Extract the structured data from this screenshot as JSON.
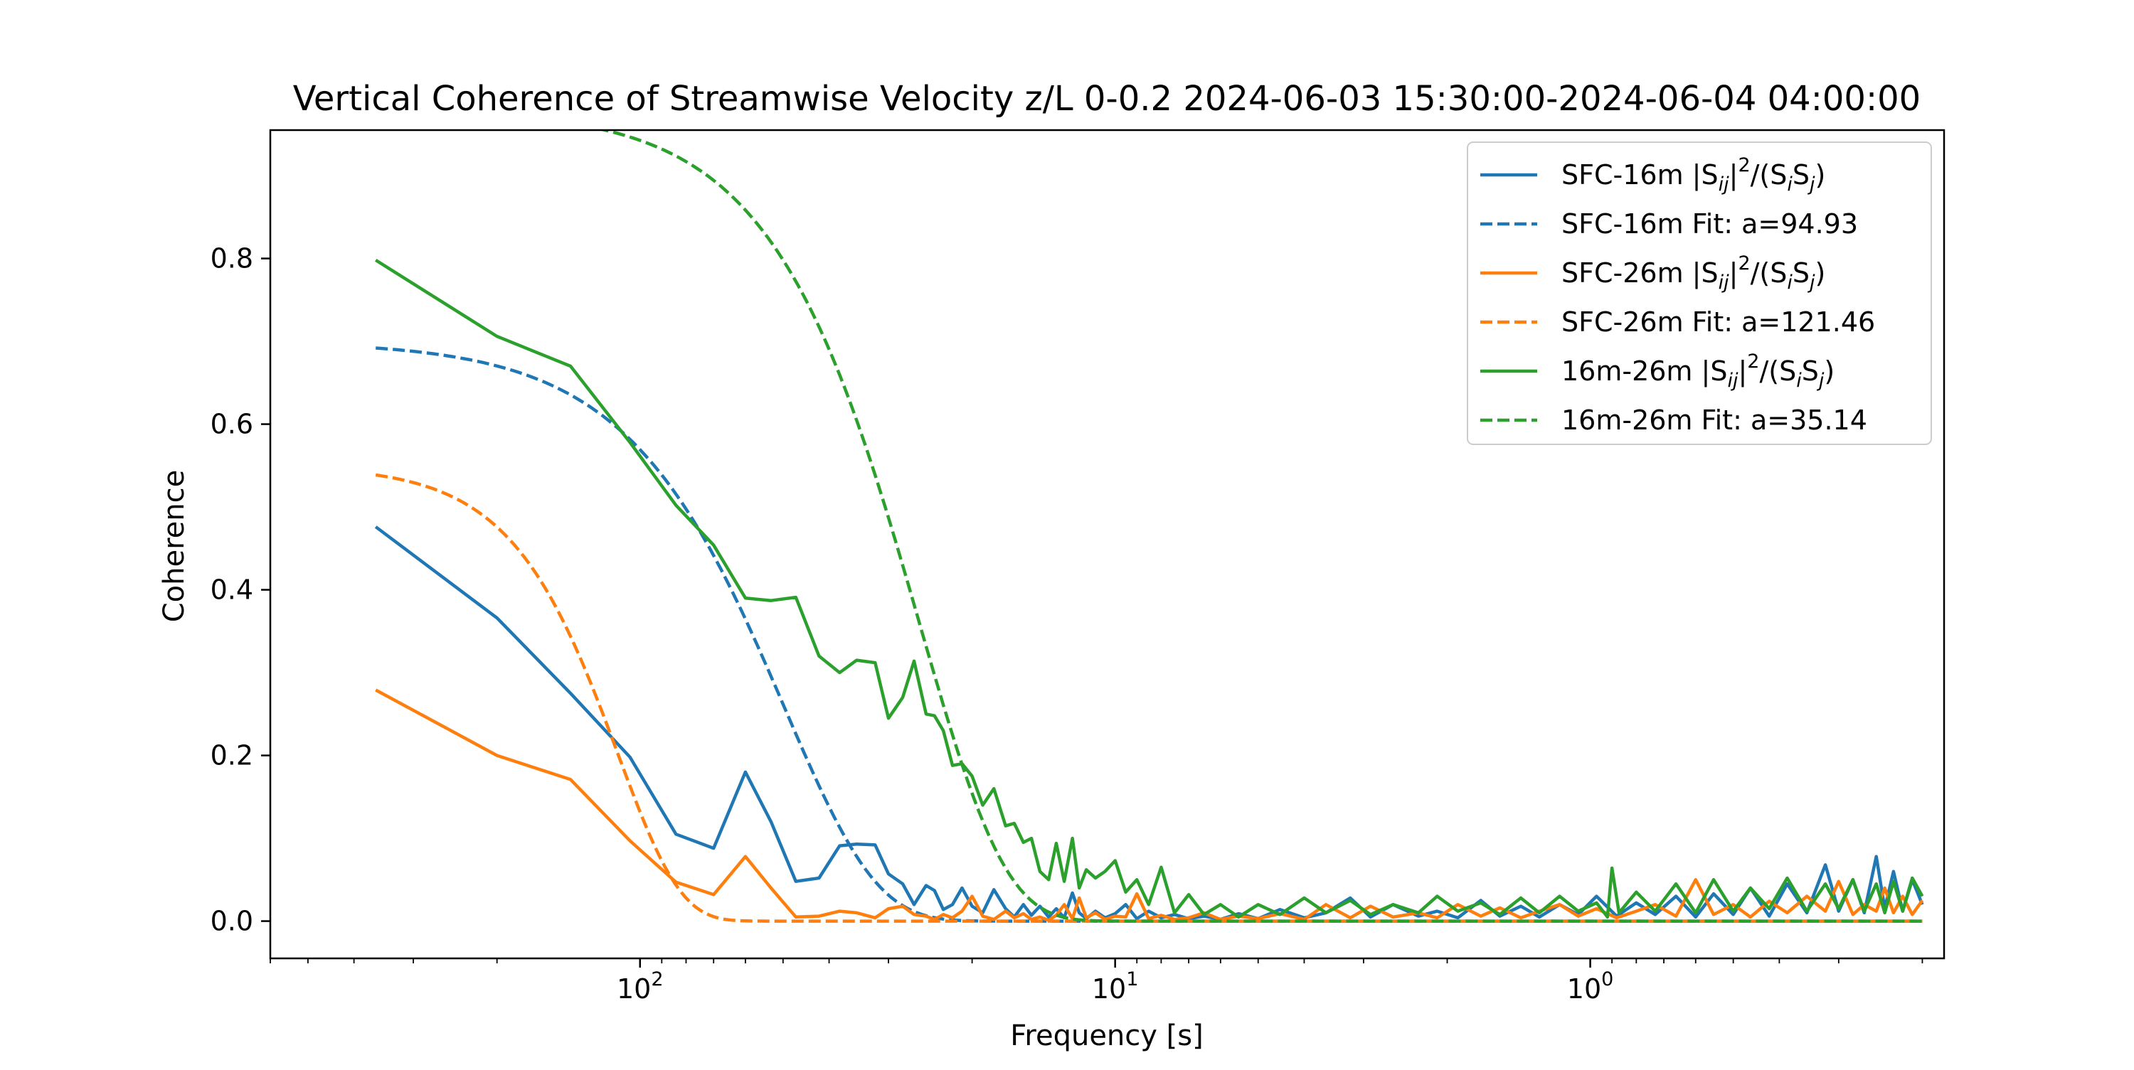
{
  "chart_data": {
    "type": "line",
    "title": "Vertical Coherence of Streamwise Velocity z/L 0-0.2 2024-06-03 15:30:00-2024-06-04 04:00:00",
    "xlabel": "Frequency [s]",
    "ylabel": "Coherence",
    "x_scale": "log",
    "x_axis_inverted": true,
    "xlim": [
      600,
      0.18
    ],
    "ylim": [
      -0.045,
      0.955
    ],
    "yticks": [
      0.0,
      0.2,
      0.4,
      0.6,
      0.8
    ],
    "ytick_labels": [
      "0.0",
      "0.2",
      "0.4",
      "0.6",
      "0.8"
    ],
    "xticks": [
      100,
      10,
      1
    ],
    "xtick_labels": [
      "10^2",
      "10^1",
      "10^0"
    ],
    "grid": false,
    "legend_position": "top-right",
    "series": [
      {
        "name": "SFC-16m |Sij|²/(SiSj)",
        "name_parts": {
          "pre": "SFC-16m |S",
          "sub1": "ij",
          "mid": "|",
          "sup": "2",
          "mid2": "/(S",
          "sub2": "i",
          "mid3": "S",
          "sub3": "j",
          "post": ")"
        },
        "color": "#1f77b4",
        "style": "solid",
        "points": [
          [
            360,
            0.476
          ],
          [
            200,
            0.366
          ],
          [
            140,
            0.275
          ],
          [
            105,
            0.198
          ],
          [
            84,
            0.105
          ],
          [
            70,
            0.088
          ],
          [
            60,
            0.18
          ],
          [
            53,
            0.12
          ],
          [
            47,
            0.048
          ],
          [
            42,
            0.052
          ],
          [
            38,
            0.091
          ],
          [
            35,
            0.093
          ],
          [
            32,
            0.092
          ],
          [
            30,
            0.057
          ],
          [
            28,
            0.045
          ],
          [
            26.5,
            0.02
          ],
          [
            25,
            0.043
          ],
          [
            24,
            0.037
          ],
          [
            23,
            0.014
          ],
          [
            22,
            0.02
          ],
          [
            21,
            0.04
          ],
          [
            20,
            0.018
          ],
          [
            19,
            0.01
          ],
          [
            18,
            0.038
          ],
          [
            17,
            0.015
          ],
          [
            16.3,
            0.005
          ],
          [
            15.6,
            0.02
          ],
          [
            15,
            0.007
          ],
          [
            14.4,
            0.018
          ],
          [
            13.8,
            0.005
          ],
          [
            13.3,
            0.015
          ],
          [
            12.8,
            0.004
          ],
          [
            12.3,
            0.034
          ],
          [
            11.9,
            0.01
          ],
          [
            11.5,
            0.003
          ],
          [
            11,
            0.012
          ],
          [
            10.5,
            0.004
          ],
          [
            10,
            0.009
          ],
          [
            9.5,
            0.02
          ],
          [
            9,
            0.003
          ],
          [
            8.5,
            0.012
          ],
          [
            8,
            0.004
          ],
          [
            7.5,
            0.008
          ],
          [
            7,
            0.003
          ],
          [
            6.5,
            0.006
          ],
          [
            6,
            0.002
          ],
          [
            5.5,
            0.009
          ],
          [
            5,
            0.003
          ],
          [
            4.5,
            0.014
          ],
          [
            4,
            0.004
          ],
          [
            3.6,
            0.01
          ],
          [
            3.2,
            0.028
          ],
          [
            2.9,
            0.005
          ],
          [
            2.6,
            0.02
          ],
          [
            2.3,
            0.006
          ],
          [
            2.1,
            0.012
          ],
          [
            1.9,
            0.004
          ],
          [
            1.7,
            0.025
          ],
          [
            1.55,
            0.006
          ],
          [
            1.4,
            0.018
          ],
          [
            1.28,
            0.005
          ],
          [
            1.16,
            0.02
          ],
          [
            1.06,
            0.008
          ],
          [
            0.97,
            0.03
          ],
          [
            0.88,
            0.006
          ],
          [
            0.8,
            0.022
          ],
          [
            0.73,
            0.008
          ],
          [
            0.66,
            0.03
          ],
          [
            0.6,
            0.005
          ],
          [
            0.55,
            0.033
          ],
          [
            0.5,
            0.008
          ],
          [
            0.46,
            0.04
          ],
          [
            0.42,
            0.006
          ],
          [
            0.385,
            0.045
          ],
          [
            0.35,
            0.01
          ],
          [
            0.32,
            0.068
          ],
          [
            0.3,
            0.012
          ],
          [
            0.28,
            0.05
          ],
          [
            0.265,
            0.01
          ],
          [
            0.25,
            0.078
          ],
          [
            0.24,
            0.015
          ],
          [
            0.23,
            0.06
          ],
          [
            0.22,
            0.012
          ],
          [
            0.21,
            0.05
          ],
          [
            0.2,
            0.02
          ]
        ]
      },
      {
        "name": "SFC-16m Fit: a=94.93",
        "color": "#1f77b4",
        "style": "dashed",
        "fit": {
          "a": 94.93,
          "c0": 0.7,
          "p": 2.25
        }
      },
      {
        "name": "SFC-26m |Sij|²/(SiSj)",
        "name_parts": {
          "pre": "SFC-26m |S",
          "sub1": "ij",
          "mid": "|",
          "sup": "2",
          "mid2": "/(S",
          "sub2": "i",
          "mid3": "S",
          "sub3": "j",
          "post": ")"
        },
        "color": "#ff7f0e",
        "style": "solid",
        "points": [
          [
            360,
            0.279
          ],
          [
            200,
            0.2
          ],
          [
            140,
            0.171
          ],
          [
            105,
            0.097
          ],
          [
            84,
            0.047
          ],
          [
            70,
            0.032
          ],
          [
            60,
            0.078
          ],
          [
            53,
            0.04
          ],
          [
            47,
            0.005
          ],
          [
            42,
            0.006
          ],
          [
            38,
            0.012
          ],
          [
            35,
            0.01
          ],
          [
            32,
            0.004
          ],
          [
            30,
            0.015
          ],
          [
            28,
            0.018
          ],
          [
            26.5,
            0.008
          ],
          [
            25,
            0.006
          ],
          [
            24,
            0.002
          ],
          [
            23,
            0.008
          ],
          [
            22,
            0.004
          ],
          [
            21,
            0.012
          ],
          [
            20,
            0.03
          ],
          [
            19,
            0.006
          ],
          [
            18,
            0.002
          ],
          [
            17,
            0.012
          ],
          [
            16.3,
            0.004
          ],
          [
            15.6,
            0.009
          ],
          [
            15,
            0.002
          ],
          [
            14.4,
            0.005
          ],
          [
            13.8,
            0.001
          ],
          [
            13.3,
            0.007
          ],
          [
            12.8,
            0.02
          ],
          [
            12.3,
            0.003
          ],
          [
            11.9,
            0.028
          ],
          [
            11.5,
            0.004
          ],
          [
            11,
            0.01
          ],
          [
            10.5,
            0.002
          ],
          [
            10,
            0.006
          ],
          [
            9.5,
            0.005
          ],
          [
            9,
            0.033
          ],
          [
            8.5,
            0.003
          ],
          [
            8,
            0.007
          ],
          [
            7.5,
            0.002
          ],
          [
            7,
            0.004
          ],
          [
            6.5,
            0.01
          ],
          [
            6,
            0.002
          ],
          [
            5.5,
            0.006
          ],
          [
            5,
            0.003
          ],
          [
            4.5,
            0.009
          ],
          [
            4,
            0.002
          ],
          [
            3.6,
            0.02
          ],
          [
            3.2,
            0.004
          ],
          [
            2.9,
            0.018
          ],
          [
            2.6,
            0.005
          ],
          [
            2.3,
            0.01
          ],
          [
            2.1,
            0.004
          ],
          [
            1.9,
            0.02
          ],
          [
            1.7,
            0.006
          ],
          [
            1.55,
            0.016
          ],
          [
            1.4,
            0.004
          ],
          [
            1.28,
            0.012
          ],
          [
            1.16,
            0.02
          ],
          [
            1.06,
            0.006
          ],
          [
            0.97,
            0.015
          ],
          [
            0.88,
            0.004
          ],
          [
            0.8,
            0.012
          ],
          [
            0.73,
            0.02
          ],
          [
            0.66,
            0.006
          ],
          [
            0.6,
            0.05
          ],
          [
            0.55,
            0.008
          ],
          [
            0.5,
            0.02
          ],
          [
            0.46,
            0.005
          ],
          [
            0.42,
            0.024
          ],
          [
            0.385,
            0.01
          ],
          [
            0.35,
            0.03
          ],
          [
            0.32,
            0.012
          ],
          [
            0.3,
            0.048
          ],
          [
            0.28,
            0.008
          ],
          [
            0.265,
            0.02
          ],
          [
            0.25,
            0.012
          ],
          [
            0.24,
            0.04
          ],
          [
            0.23,
            0.01
          ],
          [
            0.22,
            0.03
          ],
          [
            0.21,
            0.008
          ],
          [
            0.2,
            0.025
          ]
        ]
      },
      {
        "name": "SFC-26m Fit: a=121.46",
        "color": "#ff7f0e",
        "style": "dashed",
        "fit": {
          "a": 121.46,
          "c0": 0.55,
          "p": 3.3
        }
      },
      {
        "name": "16m-26m |Sij|²/(SiSj)",
        "name_parts": {
          "pre": "16m-26m |S",
          "sub1": "ij",
          "mid": "|",
          "sup": "2",
          "mid2": "/(S",
          "sub2": "i",
          "mid3": "S",
          "sub3": "j",
          "post": ")"
        },
        "color": "#2ca02c",
        "style": "solid",
        "points": [
          [
            360,
            0.798
          ],
          [
            200,
            0.706
          ],
          [
            140,
            0.67
          ],
          [
            105,
            0.578
          ],
          [
            84,
            0.502
          ],
          [
            70,
            0.454
          ],
          [
            60,
            0.39
          ],
          [
            53,
            0.387
          ],
          [
            47,
            0.391
          ],
          [
            42,
            0.32
          ],
          [
            38,
            0.3
          ],
          [
            35,
            0.315
          ],
          [
            32,
            0.312
          ],
          [
            30,
            0.245
          ],
          [
            28,
            0.27
          ],
          [
            26.5,
            0.314
          ],
          [
            25,
            0.25
          ],
          [
            24,
            0.248
          ],
          [
            23,
            0.23
          ],
          [
            22,
            0.188
          ],
          [
            21,
            0.19
          ],
          [
            20,
            0.175
          ],
          [
            19,
            0.14
          ],
          [
            18,
            0.16
          ],
          [
            17,
            0.115
          ],
          [
            16.3,
            0.118
          ],
          [
            15.6,
            0.095
          ],
          [
            15,
            0.1
          ],
          [
            14.4,
            0.06
          ],
          [
            13.8,
            0.05
          ],
          [
            13.3,
            0.094
          ],
          [
            12.8,
            0.048
          ],
          [
            12.3,
            0.1
          ],
          [
            11.9,
            0.04
          ],
          [
            11.5,
            0.062
          ],
          [
            11,
            0.052
          ],
          [
            10.5,
            0.06
          ],
          [
            10,
            0.073
          ],
          [
            9.5,
            0.035
          ],
          [
            9,
            0.05
          ],
          [
            8.5,
            0.02
          ],
          [
            8,
            0.065
          ],
          [
            7.5,
            0.01
          ],
          [
            7,
            0.032
          ],
          [
            6.5,
            0.008
          ],
          [
            6,
            0.02
          ],
          [
            5.5,
            0.005
          ],
          [
            5,
            0.02
          ],
          [
            4.5,
            0.008
          ],
          [
            4,
            0.028
          ],
          [
            3.6,
            0.01
          ],
          [
            3.2,
            0.025
          ],
          [
            2.9,
            0.008
          ],
          [
            2.6,
            0.02
          ],
          [
            2.3,
            0.01
          ],
          [
            2.1,
            0.03
          ],
          [
            1.9,
            0.012
          ],
          [
            1.7,
            0.022
          ],
          [
            1.55,
            0.008
          ],
          [
            1.4,
            0.028
          ],
          [
            1.28,
            0.01
          ],
          [
            1.16,
            0.03
          ],
          [
            1.06,
            0.012
          ],
          [
            0.97,
            0.022
          ],
          [
            0.92,
            0.005
          ],
          [
            0.9,
            0.064
          ],
          [
            0.87,
            0.01
          ],
          [
            0.8,
            0.035
          ],
          [
            0.73,
            0.012
          ],
          [
            0.66,
            0.045
          ],
          [
            0.6,
            0.01
          ],
          [
            0.55,
            0.05
          ],
          [
            0.5,
            0.012
          ],
          [
            0.46,
            0.04
          ],
          [
            0.42,
            0.015
          ],
          [
            0.385,
            0.052
          ],
          [
            0.35,
            0.012
          ],
          [
            0.32,
            0.045
          ],
          [
            0.3,
            0.015
          ],
          [
            0.28,
            0.05
          ],
          [
            0.265,
            0.012
          ],
          [
            0.25,
            0.045
          ],
          [
            0.24,
            0.01
          ],
          [
            0.23,
            0.048
          ],
          [
            0.22,
            0.012
          ],
          [
            0.21,
            0.052
          ],
          [
            0.2,
            0.03
          ]
        ]
      },
      {
        "name": "16m-26m Fit: a=35.14",
        "color": "#2ca02c",
        "style": "dashed",
        "fit": {
          "a": 35.14,
          "c0": 0.98,
          "p": 2.4
        }
      }
    ]
  }
}
